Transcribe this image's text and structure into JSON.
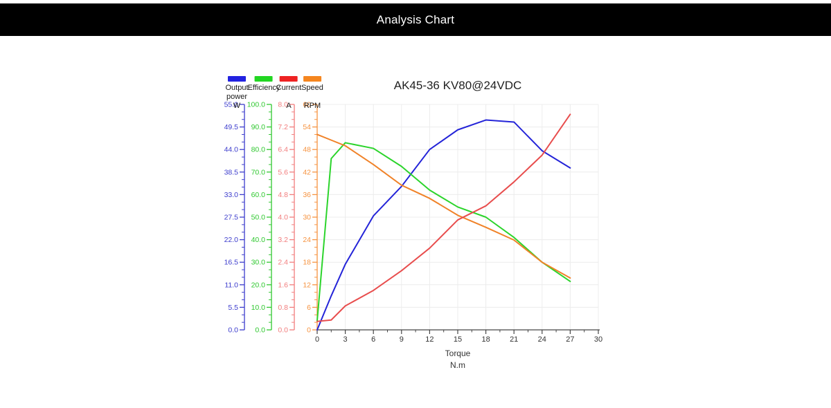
{
  "header": {
    "title": "Analysis Chart"
  },
  "chart_data": {
    "type": "line",
    "title": "AK45-36 KV80@24VDC",
    "xlabel": "Torque",
    "x_unit": "N.m",
    "x_range": [
      0,
      30
    ],
    "x_tick_step": 3,
    "x_tick_labels": [
      "0",
      "3",
      "6",
      "9",
      "12",
      "15",
      "18",
      "21",
      "24",
      "27",
      "30"
    ],
    "grid": true,
    "legend_position": "top-left",
    "x": [
      0,
      1.5,
      3,
      6,
      9,
      12,
      15,
      18,
      21,
      24,
      27
    ],
    "series": [
      {
        "name": "Output power",
        "unit": "W",
        "color": "#2424d8",
        "swatch_color": "#2222e0",
        "label_color": "#3c3ccd",
        "axis_range": [
          0,
          55
        ],
        "tick_labels": [
          "0.0",
          "5.5",
          "11.0",
          "16.5",
          "22.0",
          "27.5",
          "33.0",
          "38.5",
          "44.0",
          "49.5",
          "55.0"
        ],
        "values": [
          0,
          8.3,
          16.0,
          27.8,
          35.0,
          44.0,
          48.8,
          51.2,
          50.7,
          43.7,
          39.5
        ]
      },
      {
        "name": "Efficiency",
        "unit": "",
        "color": "#2bd42b",
        "swatch_color": "#22d622",
        "label_color": "#2fc82f",
        "axis_range": [
          0,
          100
        ],
        "tick_labels": [
          "0.0",
          "10.0",
          "20.0",
          "30.0",
          "40.0",
          "50.0",
          "60.0",
          "70.0",
          "80.0",
          "90.0",
          "100.0"
        ],
        "values": [
          4,
          76,
          83,
          80.5,
          72.5,
          62,
          54.5,
          50,
          41,
          30,
          21.5
        ]
      },
      {
        "name": "Current",
        "unit": "A",
        "color": "#e84d4d",
        "swatch_color": "#ee2222",
        "label_color": "#f27d7d",
        "axis_range": [
          0,
          8
        ],
        "tick_labels": [
          "0.0",
          "0.8",
          "1.6",
          "2.4",
          "3.2",
          "4.0",
          "4.8",
          "5.6",
          "6.4",
          "7.2",
          "8.0"
        ],
        "values": [
          0.3,
          0.35,
          0.85,
          1.4,
          2.1,
          2.9,
          3.9,
          4.4,
          5.25,
          6.2,
          7.65
        ]
      },
      {
        "name": "Speed",
        "unit": "RPM",
        "color": "#f08228",
        "swatch_color": "#f5861f",
        "label_color": "#f69340",
        "axis_range": [
          0,
          60
        ],
        "tick_labels": [
          "0",
          "6",
          "12",
          "18",
          "24",
          "30",
          "36",
          "42",
          "48",
          "54",
          "60"
        ],
        "values": [
          52,
          50.5,
          49,
          44,
          38.5,
          35,
          30.5,
          27.3,
          23.9,
          18,
          13.8
        ]
      }
    ]
  }
}
